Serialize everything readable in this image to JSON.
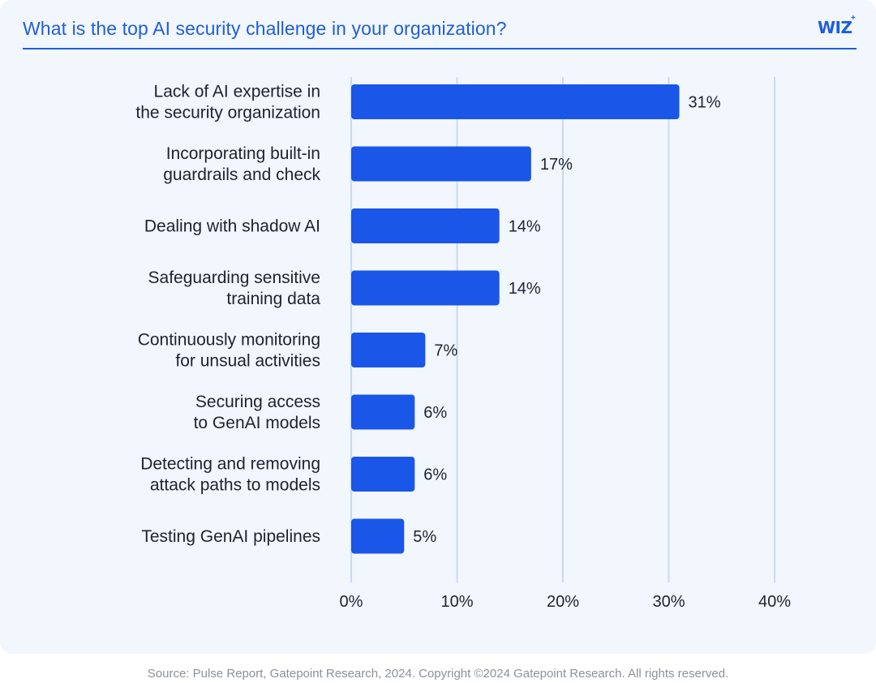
{
  "header": {
    "title": "What is the top AI security challenge in your organization?",
    "logo_text": "WIZ",
    "logo_mark": "+"
  },
  "footer": {
    "source": "Source: Pulse Report, Gatepoint Research, 2024. Copyright ©2024 Gatepoint Research. All rights reserved."
  },
  "colors": {
    "bar": "#1a56e8",
    "grid": "#c9daf2",
    "accent": "#1f5fd6",
    "background": "#f2f6fd"
  },
  "chart_data": {
    "type": "bar",
    "orientation": "horizontal",
    "title": "What is the top AI security challenge in your organization?",
    "xlabel": "",
    "ylabel": "",
    "xlim": [
      0,
      40
    ],
    "grid": true,
    "categories": [
      [
        "Lack of AI expertise in",
        "the security organization"
      ],
      [
        "Incorporating built-in",
        "guardrails and check"
      ],
      [
        "Dealing with shadow AI"
      ],
      [
        "Safeguarding sensitive",
        "training data"
      ],
      [
        "Continuously monitoring",
        "for unsual activities"
      ],
      [
        "Securing access",
        "to GenAI models"
      ],
      [
        "Detecting and removing",
        "attack paths to models"
      ],
      [
        "Testing GenAI pipelines"
      ]
    ],
    "values": [
      31,
      17,
      14,
      14,
      7,
      6,
      6,
      5
    ],
    "value_labels": [
      "31%",
      "17%",
      "14%",
      "14%",
      "7%",
      "6%",
      "6%",
      "5%"
    ],
    "ticks": [
      0,
      10,
      20,
      30,
      40
    ],
    "tick_labels": [
      "0%",
      "10%",
      "20%",
      "30%",
      "40%"
    ]
  }
}
